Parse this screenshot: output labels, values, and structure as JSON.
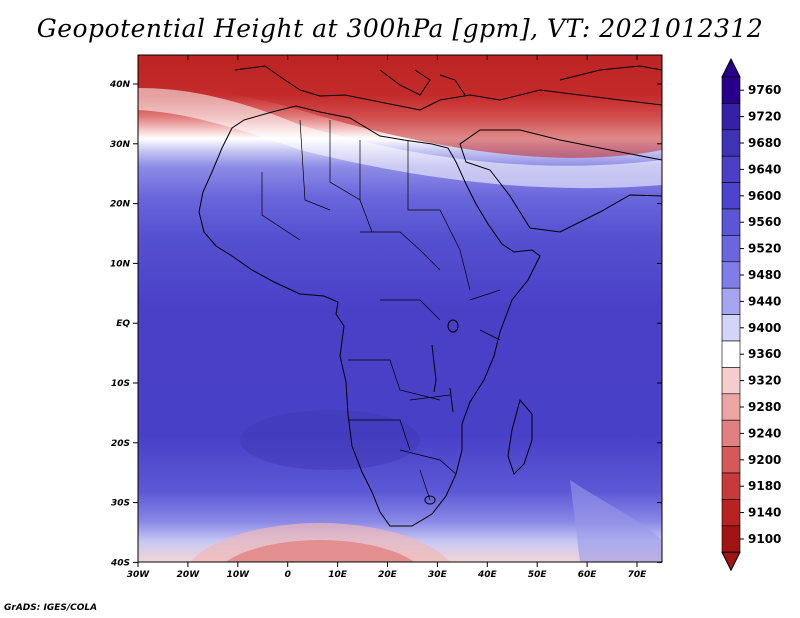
{
  "title": "Geopotential Height at 300hPa [gpm], VT: 2021012312",
  "credit": "GrADS: IGES/COLA",
  "map": {
    "lon_labels": [
      "30W",
      "20W",
      "10W",
      "0",
      "10E",
      "20E",
      "30E",
      "40E",
      "50E",
      "60E",
      "70E"
    ],
    "lat_labels": [
      "40N",
      "30N",
      "20N",
      "10N",
      "EQ",
      "10S",
      "20S",
      "30S",
      "40S"
    ],
    "lon_range": [
      -30,
      75
    ],
    "lat_range": [
      -40,
      44
    ]
  },
  "colorbar": {
    "levels": [
      "9760",
      "9720",
      "9680",
      "9640",
      "9600",
      "9560",
      "9520",
      "9480",
      "9440",
      "9400",
      "9360",
      "9320",
      "9280",
      "9240",
      "9200",
      "9180",
      "9140",
      "9100"
    ],
    "colors": [
      "#28008c",
      "#3621a6",
      "#3f33b5",
      "#4a3fc5",
      "#4c44cc",
      "#5a56d6",
      "#6a66de",
      "#7f7de7",
      "#a6a6f0",
      "#d4d4f8",
      "#ffffff",
      "#f5cdcd",
      "#eca5a5",
      "#e08080",
      "#d45a5a",
      "#c83a3a",
      "#b82222",
      "#a01414"
    ]
  }
}
